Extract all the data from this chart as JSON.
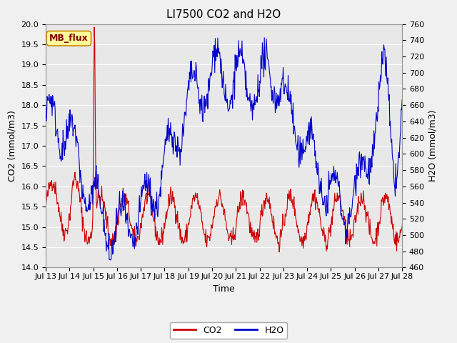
{
  "title": "LI7500 CO2 and H2O",
  "xlabel": "Time",
  "ylabel_left": "CO2 (mmol/m3)",
  "ylabel_right": "H2O (mmol/m3)",
  "co2_ylim": [
    14.0,
    20.0
  ],
  "h2o_ylim": [
    460,
    760
  ],
  "xtick_labels": [
    "Jul 13",
    "Jul 14",
    "Jul 15",
    "Jul 16",
    "Jul 17",
    "Jul 18",
    "Jul 19",
    "Jul 20",
    "Jul 21",
    "Jul 22",
    "Jul 23",
    "Jul 24",
    "Jul 25",
    "Jul 26",
    "Jul 27",
    "Jul 28"
  ],
  "co2_color": "#cc0000",
  "h2o_color": "#0000cc",
  "fig_bg_color": "#f0f0f0",
  "plot_bg_color": "#e8e8e8",
  "grid_color": "#ffffff",
  "legend_label_co2": "CO2",
  "legend_label_h2o": "H2O",
  "annotation_text": "MB_flux",
  "annotation_bg": "#ffff99",
  "annotation_border": "#cc8800",
  "title_fontsize": 11,
  "label_fontsize": 9,
  "tick_fontsize": 8,
  "legend_fontsize": 9,
  "annotation_fontsize": 9,
  "n_days": 15,
  "n_pts": 720,
  "linewidth": 0.8
}
